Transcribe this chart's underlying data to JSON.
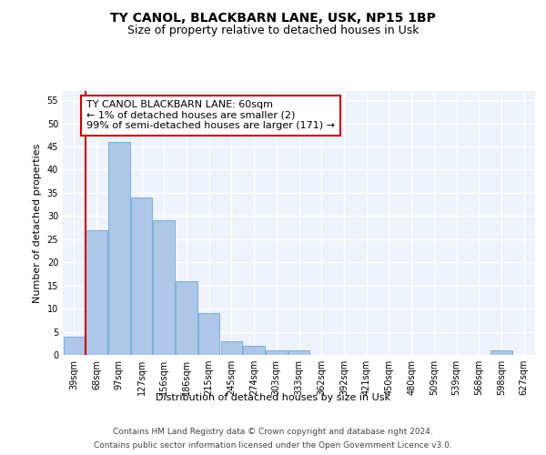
{
  "title1": "TY CANOL, BLACKBARN LANE, USK, NP15 1BP",
  "title2": "Size of property relative to detached houses in Usk",
  "xlabel": "Distribution of detached houses by size in Usk",
  "ylabel": "Number of detached properties",
  "categories": [
    "39sqm",
    "68sqm",
    "97sqm",
    "127sqm",
    "156sqm",
    "186sqm",
    "215sqm",
    "245sqm",
    "274sqm",
    "303sqm",
    "333sqm",
    "362sqm",
    "392sqm",
    "421sqm",
    "450sqm",
    "480sqm",
    "509sqm",
    "539sqm",
    "568sqm",
    "598sqm",
    "627sqm"
  ],
  "values": [
    4,
    27,
    46,
    34,
    29,
    16,
    9,
    3,
    2,
    1,
    1,
    0,
    0,
    0,
    0,
    0,
    0,
    0,
    0,
    1,
    0
  ],
  "bar_color": "#aec6e8",
  "bar_edge_color": "#6aaad4",
  "vline_color": "#cc0000",
  "annotation_box_text": "TY CANOL BLACKBARN LANE: 60sqm\n← 1% of detached houses are smaller (2)\n99% of semi-detached houses are larger (171) →",
  "annotation_box_color": "#cc0000",
  "background_color": "#eef2fa",
  "grid_color": "#ffffff",
  "ylim": [
    0,
    57
  ],
  "yticks": [
    0,
    5,
    10,
    15,
    20,
    25,
    30,
    35,
    40,
    45,
    50,
    55
  ],
  "footer1": "Contains HM Land Registry data © Crown copyright and database right 2024.",
  "footer2": "Contains public sector information licensed under the Open Government Licence v3.0.",
  "title_fontsize": 10,
  "subtitle_fontsize": 9,
  "label_fontsize": 8,
  "tick_fontsize": 7,
  "annotation_fontsize": 8,
  "footer_fontsize": 6.5
}
